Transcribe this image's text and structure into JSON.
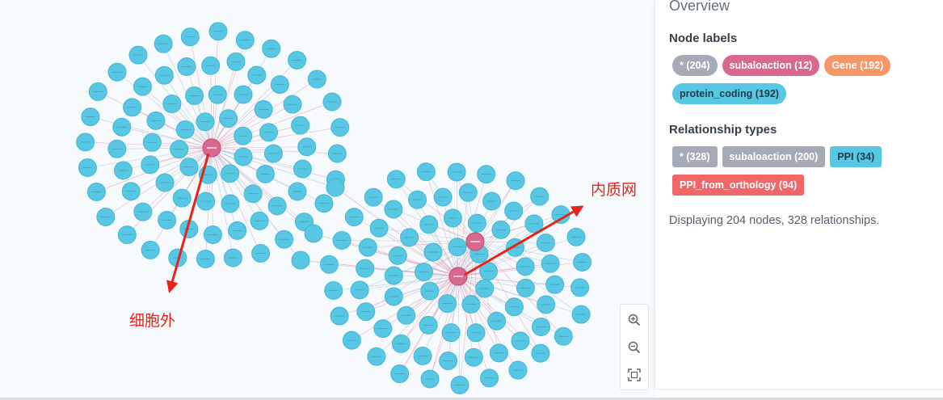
{
  "colors": {
    "gene_node": "#57c7e3",
    "subaloaction_node": "#d9688f",
    "arrow": "#e8231a",
    "edge_pink": "#e7a3b6",
    "edge_blue": "#a6c8d8"
  },
  "annotations": {
    "left_label": "细胞外",
    "right_label": "内质网"
  },
  "zoom_controls": {
    "zoom_in_icon": "zoom-in-icon",
    "zoom_out_icon": "zoom-out-icon",
    "fit_icon": "fit-to-screen-icon"
  },
  "sidebar": {
    "title": "Overview",
    "node_labels_title": "Node labels",
    "node_labels": [
      {
        "text": "* (204)",
        "color": "#a5abb6"
      },
      {
        "text": "subaloaction (12)",
        "color": "#d9688f"
      },
      {
        "text": "Gene (192)",
        "color": "#f79767"
      },
      {
        "text": "protein_coding (192)",
        "color": "#57c7e3"
      }
    ],
    "relationship_types_title": "Relationship types",
    "relationship_types": [
      {
        "text": "* (328)",
        "color": "#a5abb6"
      },
      {
        "text": "subaloaction (200)",
        "color": "#a5abb6"
      },
      {
        "text": "PPI (34)",
        "color": "#57c7e3"
      },
      {
        "text": "PPI_from_orthology (94)",
        "color": "#f16667"
      }
    ],
    "summary": "Displaying 204 nodes, 328 relationships."
  }
}
